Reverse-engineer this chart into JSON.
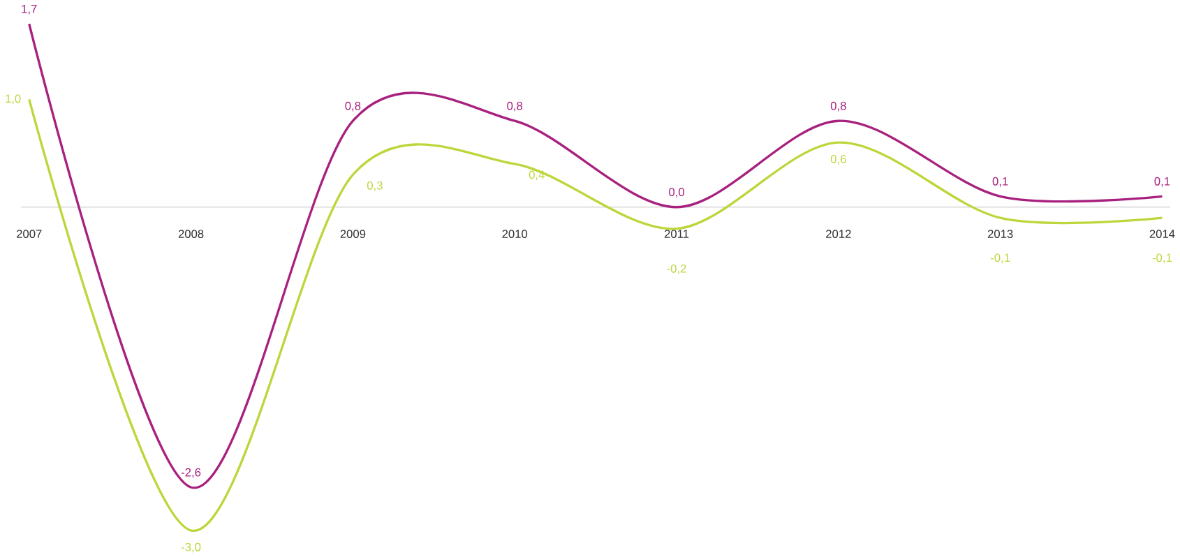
{
  "chart_data": {
    "type": "line",
    "categories": [
      "2007",
      "2008",
      "2009",
      "2010",
      "2011",
      "2012",
      "2013",
      "2014"
    ],
    "series": [
      {
        "color": "#a8217f",
        "values": [
          1.7,
          -2.6,
          0.8,
          0.8,
          0.0,
          0.8,
          0.1,
          0.1
        ],
        "value_labels": [
          "1,7",
          "-2,6",
          "0,8",
          "0,8",
          "0,0",
          "0,8",
          "0,1",
          "0,1"
        ]
      },
      {
        "color": "#bcd63b",
        "values": [
          1.0,
          -3.0,
          0.3,
          0.4,
          -0.2,
          0.6,
          -0.1,
          -0.1
        ],
        "value_labels": [
          "1,0",
          "-3,0",
          "0,3",
          "0,4",
          "-0,2",
          "0,6",
          "-0,1",
          "-0,1"
        ]
      }
    ],
    "grid": false,
    "marker": "none",
    "line_style": "solid"
  }
}
